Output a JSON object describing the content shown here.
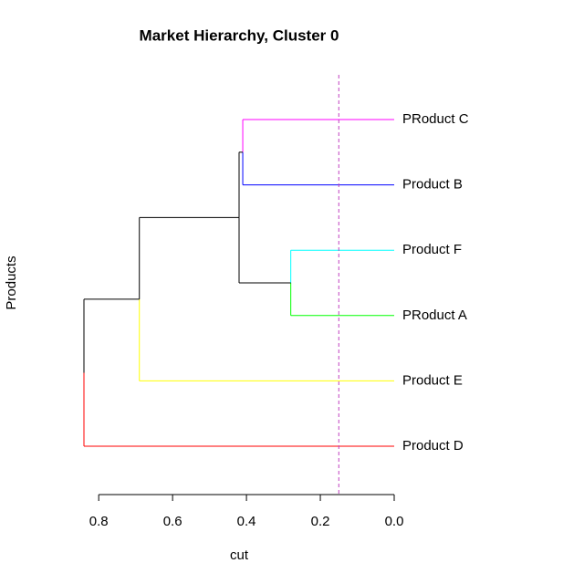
{
  "chart_data": {
    "type": "dendrogram",
    "title": "Market Hierarchy, Cluster 0",
    "xlabel": "cut",
    "ylabel": "Products",
    "leaves": [
      {
        "name": "PRoduct C",
        "color": "#ff00ff"
      },
      {
        "name": "Product B",
        "color": "#0000ff"
      },
      {
        "name": "Product F",
        "color": "#00ffff"
      },
      {
        "name": "PRoduct A",
        "color": "#00ff00"
      },
      {
        "name": "Product E",
        "color": "#ffff00"
      },
      {
        "name": "Product D",
        "color": "#ff0000"
      }
    ],
    "merges": [
      {
        "children": [
          0,
          1
        ],
        "height": 0.41
      },
      {
        "children": [
          2,
          3
        ],
        "height": 0.28
      },
      {
        "children": [
          6,
          7
        ],
        "height": 0.42
      },
      {
        "children": [
          8,
          4
        ],
        "height": 0.69
      },
      {
        "children": [
          9,
          5
        ],
        "height": 0.84
      }
    ],
    "cut": 0.15,
    "cut_color": "#c040c0",
    "xlim": [
      0.84,
      0.0
    ],
    "xticks": [
      0.8,
      0.6,
      0.4,
      0.2,
      {
        "value": 0.0,
        "label": "0.0"
      }
    ]
  }
}
